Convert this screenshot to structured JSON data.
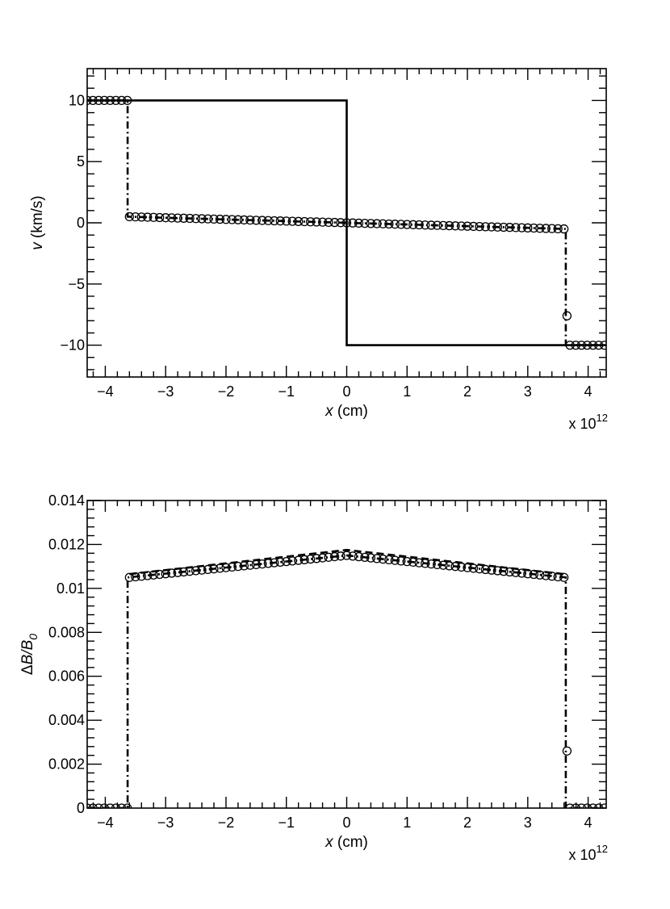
{
  "chart_data": [
    {
      "type": "line",
      "title": "",
      "xlabel": "x (cm)",
      "xlabel_var": "x",
      "xlabel_unit": " (cm)",
      "ylabel": "v (km/s)",
      "ylabel_var": "v",
      "ylabel_unit": " (km/s)",
      "x_multiplier": "x 10",
      "x_multiplier_exp": "12",
      "xlim": [
        -4.3,
        4.3
      ],
      "ylim": [
        -12.6,
        12.6
      ],
      "xticks": [
        -4,
        -3,
        -2,
        -1,
        0,
        1,
        2,
        3,
        4
      ],
      "xtick_labels": [
        "−4",
        "−3",
        "−2",
        "−1",
        "0",
        "1",
        "2",
        "3",
        "4"
      ],
      "yticks": [
        -10,
        -5,
        0,
        5,
        10
      ],
      "ytick_labels": [
        "−10",
        "−5",
        "0",
        "5",
        "10"
      ],
      "grid": false,
      "series": [
        {
          "style": "solid",
          "x": [
            -4.3,
            0.0,
            0.0,
            4.3
          ],
          "y": [
            10,
            10,
            -10,
            -10
          ]
        },
        {
          "style": "dashdot",
          "x": [
            -4.3,
            -3.63,
            -3.63,
            3.63,
            3.63,
            4.3
          ],
          "y": [
            10,
            10,
            0.5,
            -0.5,
            -10,
            -10
          ]
        },
        {
          "style": "markers-open-circle",
          "x_ranges": [
            {
              "from": -4.3,
              "to": -3.65,
              "step": 0.095,
              "y_from": 10,
              "y_to": 10
            },
            {
              "from": -3.6,
              "to": 3.6,
              "step": 0.1,
              "y_from": 0.5,
              "y_to": -0.5
            },
            {
              "from": 3.7,
              "to": 4.3,
              "step": 0.095,
              "y_from": -10,
              "y_to": -10
            }
          ],
          "x_extra": [
            3.65
          ],
          "y_extra": [
            -7.6
          ]
        }
      ]
    },
    {
      "type": "line",
      "title": "",
      "xlabel": "x (cm)",
      "xlabel_var": "x",
      "xlabel_unit": " (cm)",
      "ylabel": "ΔB/B0",
      "ylabel_delta": "Δ",
      "ylabel_var": "B",
      "ylabel_slash": "/",
      "ylabel_var2": "B",
      "ylabel_sub": "0",
      "x_multiplier": "x 10",
      "x_multiplier_exp": "12",
      "xlim": [
        -4.3,
        4.3
      ],
      "ylim": [
        0,
        0.014
      ],
      "xticks": [
        -4,
        -3,
        -2,
        -1,
        0,
        1,
        2,
        3,
        4
      ],
      "xtick_labels": [
        "−4",
        "−3",
        "−2",
        "−1",
        "0",
        "1",
        "2",
        "3",
        "4"
      ],
      "yticks": [
        0,
        0.002,
        0.004,
        0.006,
        0.008,
        0.01,
        0.012,
        0.014
      ],
      "ytick_labels": [
        "0",
        "0.002",
        "0.004",
        "0.006",
        "0.008",
        "0.01",
        "0.012",
        "0.014"
      ],
      "grid": false,
      "series": [
        {
          "style": "dashed",
          "x": [
            -3.6,
            0.0,
            3.6
          ],
          "y": [
            0.01065,
            0.01175,
            0.01065
          ]
        },
        {
          "style": "dashdot",
          "x": [
            -4.3,
            -3.63,
            -3.63,
            0.0,
            3.63,
            3.63,
            4.3
          ],
          "y": [
            0,
            0,
            0.0105,
            0.0115,
            0.0105,
            0,
            0
          ]
        },
        {
          "style": "markers-open-circle",
          "x_ranges": [
            {
              "from": -4.3,
              "to": -3.65,
              "step": 0.095,
              "y_from": 0,
              "y_to": 0
            },
            {
              "from": -3.6,
              "to": 0.0,
              "step": 0.1,
              "y_from": 0.0105,
              "y_to": 0.0115
            },
            {
              "from": 0.1,
              "to": 3.6,
              "step": 0.1,
              "y_from": 0.01147,
              "y_to": 0.0105
            },
            {
              "from": 3.7,
              "to": 4.3,
              "step": 0.095,
              "y_from": 0,
              "y_to": 0
            }
          ],
          "x_extra": [
            3.65
          ],
          "y_extra": [
            0.0026
          ]
        }
      ]
    }
  ]
}
